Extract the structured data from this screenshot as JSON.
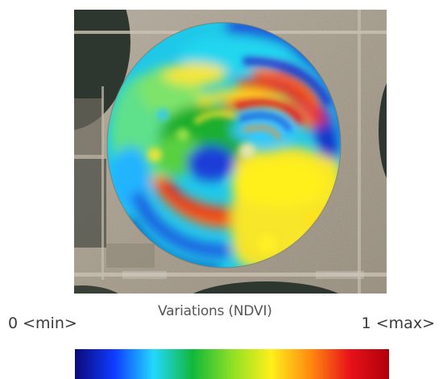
{
  "map": {
    "kind": "satellite NDVI overlay of a center-pivot field",
    "imagery_credits": "",
    "colors": {
      "soil": "#a39988",
      "dark_field": "#2e3630",
      "ndvi_low": "#0a2aa8",
      "ndvi_mid": "#1fae2f",
      "ndvi_high": "#e11a12"
    }
  },
  "legend": {
    "title": "Variations (NDVI)",
    "min_label": "0 <min>",
    "max_label": "1 <max>",
    "scale_min": 0,
    "scale_max": 1,
    "gradient_stops": [
      "#0b0a7a",
      "#0e3bff",
      "#22d8ff",
      "#12b83a",
      "#8ee025",
      "#ffef1a",
      "#ff8a10",
      "#e8121a",
      "#b0000a"
    ]
  }
}
